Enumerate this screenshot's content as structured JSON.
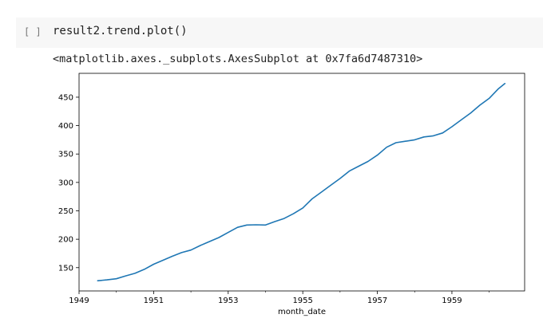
{
  "cell": {
    "run_indicator": "[ ]",
    "code": "result2.trend.plot()"
  },
  "output": {
    "repr": "<matplotlib.axes._subplots.AxesSubplot at 0x7fa6d7487310>"
  },
  "chart_data": {
    "type": "line",
    "xlabel": "month_date",
    "ylabel": "",
    "title": "",
    "xlim": [
      1949,
      1960.95
    ],
    "ylim": [
      109,
      492
    ],
    "x_ticks": [
      1949,
      1951,
      1953,
      1955,
      1957,
      1959
    ],
    "y_ticks": [
      150,
      200,
      250,
      300,
      350,
      400,
      450
    ],
    "grid": false,
    "legend": false,
    "series": [
      {
        "color": "#1f77b4",
        "x": [
          1949.5,
          1949.75,
          1950.0,
          1950.25,
          1950.5,
          1950.75,
          1951.0,
          1951.25,
          1951.5,
          1951.75,
          1952.0,
          1952.25,
          1952.5,
          1952.75,
          1953.0,
          1953.25,
          1953.5,
          1953.75,
          1954.0,
          1954.25,
          1954.5,
          1954.75,
          1955.0,
          1955.25,
          1955.5,
          1955.75,
          1956.0,
          1956.25,
          1956.5,
          1956.75,
          1957.0,
          1957.25,
          1957.5,
          1957.75,
          1958.0,
          1958.25,
          1958.5,
          1958.75,
          1959.0,
          1959.25,
          1959.5,
          1959.75,
          1960.0,
          1960.25,
          1960.42
        ],
        "values": [
          127,
          128.5,
          130.5,
          135.5,
          140,
          147,
          156,
          163,
          170,
          176.5,
          181,
          189,
          196,
          203,
          212,
          221,
          225,
          225.5,
          225,
          231,
          236.5,
          245,
          255,
          271,
          283,
          295,
          307,
          320,
          328.5,
          337,
          348,
          362,
          370,
          372.5,
          375,
          380,
          382,
          387,
          398,
          410,
          422,
          436,
          448,
          465,
          474
        ]
      }
    ]
  }
}
